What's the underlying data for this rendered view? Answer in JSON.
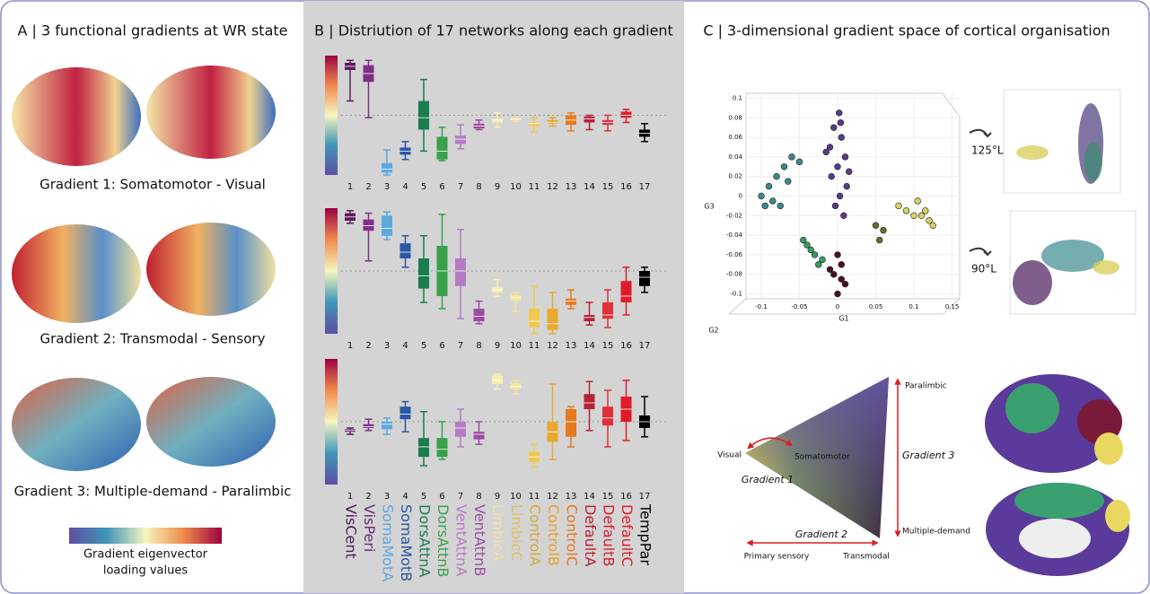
{
  "panel_a": {
    "title": "A | 3 functional gradients at WR state",
    "captions": [
      "Gradient 1: Somatomotor - Visual",
      "Gradient 2: Transmodal - Sensory",
      "Gradient 3: Multiple-demand - Paralimbic"
    ],
    "colorbar_label": [
      "Gradient eigenvector",
      "loading values"
    ]
  },
  "panel_b": {
    "title": "B | Distriution of 17 networks along each gradient",
    "network_names": [
      "VisCent",
      "VisPeri",
      "SomaMotA",
      "SomaMotB",
      "DorsAttnA",
      "DorsAttnB",
      "VentAttnA",
      "VentAttnB",
      "LimbicA",
      "LimbicC",
      "ControlA",
      "ControlB",
      "ControlC",
      "DefaultA",
      "DefaultB",
      "DefaultC",
      "TempPar"
    ],
    "name_colors": [
      "#4a1a5a",
      "#6a2a7a",
      "#5da8de",
      "#2957a4",
      "#1a7d4f",
      "#3aa04a",
      "#b47bc4",
      "#9b4ba3",
      "#ece4a8",
      "#e0c060",
      "#d8a840",
      "#eaa030",
      "#e57a20",
      "#b42335",
      "#d02030",
      "#e01c2a",
      "#000000"
    ]
  },
  "chart_data": [
    {
      "type": "box",
      "categories": [
        "1",
        "2",
        "3",
        "4",
        "5",
        "6",
        "7",
        "8",
        "9",
        "10",
        "11",
        "12",
        "13",
        "14",
        "15",
        "16",
        "17"
      ],
      "ylim": [
        0,
        1
      ],
      "colors": [
        "#5b1a5e",
        "#7e3087",
        "#5da8de",
        "#2957a4",
        "#1a7d4f",
        "#3aa04a",
        "#b47bc4",
        "#9b4ba3",
        "#f5f0b0",
        "#f2e6a0",
        "#f0c850",
        "#eaa830",
        "#e57a20",
        "#b42335",
        "#e0303a",
        "#e01c2a",
        "#000000"
      ],
      "boxes": [
        [
          0.62,
          0.88,
          0.91,
          0.94,
          0.96
        ],
        [
          0.48,
          0.78,
          0.85,
          0.92,
          0.96
        ],
        [
          0,
          0.02,
          0.05,
          0.1,
          0.21
        ],
        [
          0.13,
          0.17,
          0.2,
          0.23,
          0.28
        ],
        [
          0.2,
          0.38,
          0.48,
          0.62,
          0.8
        ],
        [
          0.12,
          0.13,
          0.2,
          0.32,
          0.4
        ],
        [
          0.22,
          0.26,
          0.3,
          0.33,
          0.42
        ],
        [
          0.38,
          0.39,
          0.41,
          0.43,
          0.46
        ],
        [
          0.4,
          0.44,
          0.46,
          0.47,
          0.52
        ],
        [
          0.45,
          0.46,
          0.47,
          0.47,
          0.48
        ],
        [
          0.36,
          0.41,
          0.43,
          0.44,
          0.48
        ],
        [
          0.41,
          0.43,
          0.44,
          0.46,
          0.48
        ],
        [
          0.37,
          0.42,
          0.46,
          0.5,
          0.52
        ],
        [
          0.38,
          0.44,
          0.47,
          0.49,
          0.5
        ],
        [
          0.37,
          0.42,
          0.44,
          0.46,
          0.5
        ],
        [
          0.44,
          0.48,
          0.5,
          0.53,
          0.55
        ],
        [
          0.28,
          0.32,
          0.35,
          0.38,
          0.43
        ]
      ]
    },
    {
      "type": "box",
      "categories": [
        "1",
        "2",
        "3",
        "4",
        "5",
        "6",
        "7",
        "8",
        "9",
        "10",
        "11",
        "12",
        "13",
        "14",
        "15",
        "16",
        "17"
      ],
      "ylim": [
        0,
        1
      ],
      "colors": [
        "#5b1a5e",
        "#7e3087",
        "#5da8de",
        "#2957a4",
        "#1a7d4f",
        "#3aa04a",
        "#b47bc4",
        "#9b4ba3",
        "#f5f0b0",
        "#f2e6a0",
        "#f0c850",
        "#eaa830",
        "#e57a20",
        "#b42335",
        "#e0303a",
        "#e01c2a",
        "#000000"
      ],
      "boxes": [
        [
          0.88,
          0.9,
          0.93,
          0.96,
          0.98
        ],
        [
          0.58,
          0.82,
          0.86,
          0.91,
          0.96
        ],
        [
          0.75,
          0.78,
          0.84,
          0.94,
          0.97
        ],
        [
          0.53,
          0.6,
          0.65,
          0.72,
          0.78
        ],
        [
          0.25,
          0.36,
          0.46,
          0.6,
          0.78
        ],
        [
          0.2,
          0.3,
          0.5,
          0.7,
          0.95
        ],
        [
          0.12,
          0.38,
          0.5,
          0.6,
          0.83
        ],
        [
          0.08,
          0.1,
          0.14,
          0.2,
          0.26
        ],
        [
          0.3,
          0.33,
          0.35,
          0.37,
          0.43
        ],
        [
          0.18,
          0.26,
          0.29,
          0.31,
          0.33
        ],
        [
          0,
          0.05,
          0.1,
          0.2,
          0.38
        ],
        [
          0,
          0.03,
          0.08,
          0.2,
          0.33
        ],
        [
          0.2,
          0.23,
          0.26,
          0.28,
          0.35
        ],
        [
          0.07,
          0.1,
          0.13,
          0.15,
          0.25
        ],
        [
          0.05,
          0.12,
          0.15,
          0.25,
          0.35
        ],
        [
          0.15,
          0.25,
          0.3,
          0.42,
          0.53
        ],
        [
          0.33,
          0.38,
          0.45,
          0.5,
          0.53
        ]
      ]
    },
    {
      "type": "box",
      "categories": [
        "1",
        "2",
        "3",
        "4",
        "5",
        "6",
        "7",
        "8",
        "9",
        "10",
        "11",
        "12",
        "13",
        "14",
        "15",
        "16",
        "17"
      ],
      "ylim": [
        0,
        1
      ],
      "colors": [
        "#5b1a5e",
        "#7e3087",
        "#5da8de",
        "#2957a4",
        "#1a7d4f",
        "#3aa04a",
        "#b47bc4",
        "#9b4ba3",
        "#f5f0b0",
        "#f2e6a0",
        "#f0c850",
        "#eaa830",
        "#e57a20",
        "#b42335",
        "#e0303a",
        "#e01c2a",
        "#000000"
      ],
      "boxes": [
        [
          0.4,
          0.42,
          0.43,
          0.44,
          0.45
        ],
        [
          0.43,
          0.45,
          0.46,
          0.48,
          0.52
        ],
        [
          0.4,
          0.44,
          0.48,
          0.5,
          0.53
        ],
        [
          0.42,
          0.52,
          0.56,
          0.62,
          0.66
        ],
        [
          0.15,
          0.22,
          0.3,
          0.37,
          0.58
        ],
        [
          0.2,
          0.22,
          0.28,
          0.37,
          0.5
        ],
        [
          0.3,
          0.38,
          0.45,
          0.5,
          0.6
        ],
        [
          0.32,
          0.36,
          0.4,
          0.42,
          0.5
        ],
        [
          0.76,
          0.8,
          0.83,
          0.87,
          0.88
        ],
        [
          0.72,
          0.76,
          0.78,
          0.81,
          0.83
        ],
        [
          0.14,
          0.18,
          0.22,
          0.26,
          0.32
        ],
        [
          0.2,
          0.34,
          0.42,
          0.5,
          0.8
        ],
        [
          0.3,
          0.38,
          0.5,
          0.6,
          0.62
        ],
        [
          0.43,
          0.6,
          0.65,
          0.72,
          0.82
        ],
        [
          0.3,
          0.47,
          0.53,
          0.62,
          0.75
        ],
        [
          0.35,
          0.5,
          0.6,
          0.7,
          0.83
        ],
        [
          0.38,
          0.45,
          0.5,
          0.55,
          0.7
        ]
      ]
    },
    {
      "type": "scatter",
      "x_label": "G1",
      "y_label": "G3",
      "z_label": "G2",
      "xlim": [
        -0.12,
        0.16
      ],
      "ylim": [
        -0.105,
        0.105
      ],
      "xticks": [
        -0.1,
        -0.05,
        0,
        0.05,
        0.1,
        0.15
      ],
      "yticks": [
        0.1,
        0.08,
        0.06,
        0.04,
        0.02,
        0,
        -0.02,
        -0.04,
        -0.06,
        -0.08,
        -0.1
      ],
      "series": [
        {
          "color": "#5a3a8a",
          "x": [
            0.002,
            -0.005,
            0.005,
            -0.01,
            0.01,
            0,
            -0.008,
            0.012,
            0.003,
            -0.003,
            0.008,
            -0.015,
            0.015,
            0.004
          ],
          "y": [
            0.085,
            0.07,
            0.06,
            0.05,
            0.04,
            0.03,
            0.02,
            0.01,
            0,
            -0.01,
            -0.02,
            0.045,
            0.025,
            0.075
          ]
        },
        {
          "color": "#3a8a90",
          "x": [
            -0.1,
            -0.09,
            -0.08,
            -0.07,
            -0.06,
            -0.075,
            -0.05,
            -0.085,
            -0.065,
            -0.095
          ],
          "y": [
            0,
            0.01,
            0.02,
            0.03,
            0.04,
            -0.01,
            0.035,
            -0.005,
            0.015,
            -0.01
          ]
        },
        {
          "color": "#3a9a60",
          "x": [
            -0.04,
            -0.03,
            -0.025,
            -0.035,
            -0.02,
            -0.045
          ],
          "y": [
            -0.05,
            -0.06,
            -0.07,
            -0.055,
            -0.065,
            -0.045
          ]
        },
        {
          "color": "#4a1020",
          "x": [
            0,
            0.005,
            -0.005,
            0.01,
            0,
            -0.01,
            0.005
          ],
          "y": [
            -0.06,
            -0.07,
            -0.08,
            -0.09,
            -0.1,
            -0.075,
            -0.085
          ]
        },
        {
          "color": "#d8d060",
          "x": [
            0.08,
            0.09,
            0.1,
            0.11,
            0.12,
            0.125,
            0.115,
            0.105
          ],
          "y": [
            -0.01,
            -0.015,
            -0.02,
            -0.02,
            -0.025,
            -0.03,
            -0.015,
            -0.005
          ]
        },
        {
          "color": "#6a6a30",
          "x": [
            0.05,
            0.06,
            0.055
          ],
          "y": [
            -0.03,
            -0.035,
            -0.045
          ]
        }
      ]
    }
  ],
  "panel_c": {
    "title": "C | 3-dimensional gradient space of cortical organisation",
    "rotations": [
      "125°L",
      "90°L"
    ],
    "triangle": {
      "visual": "Visual",
      "somatomotor": "Somatomotor",
      "gradient_1": "Gradient 1",
      "gradient_2": "Gradient 2",
      "gradient_3": "Gradient 3",
      "paralimbic": "Paralimbic",
      "multiple_demand": "Multiple-demand",
      "primary_sensory": "Primary sensory",
      "transmodal": "Transmodal"
    }
  }
}
